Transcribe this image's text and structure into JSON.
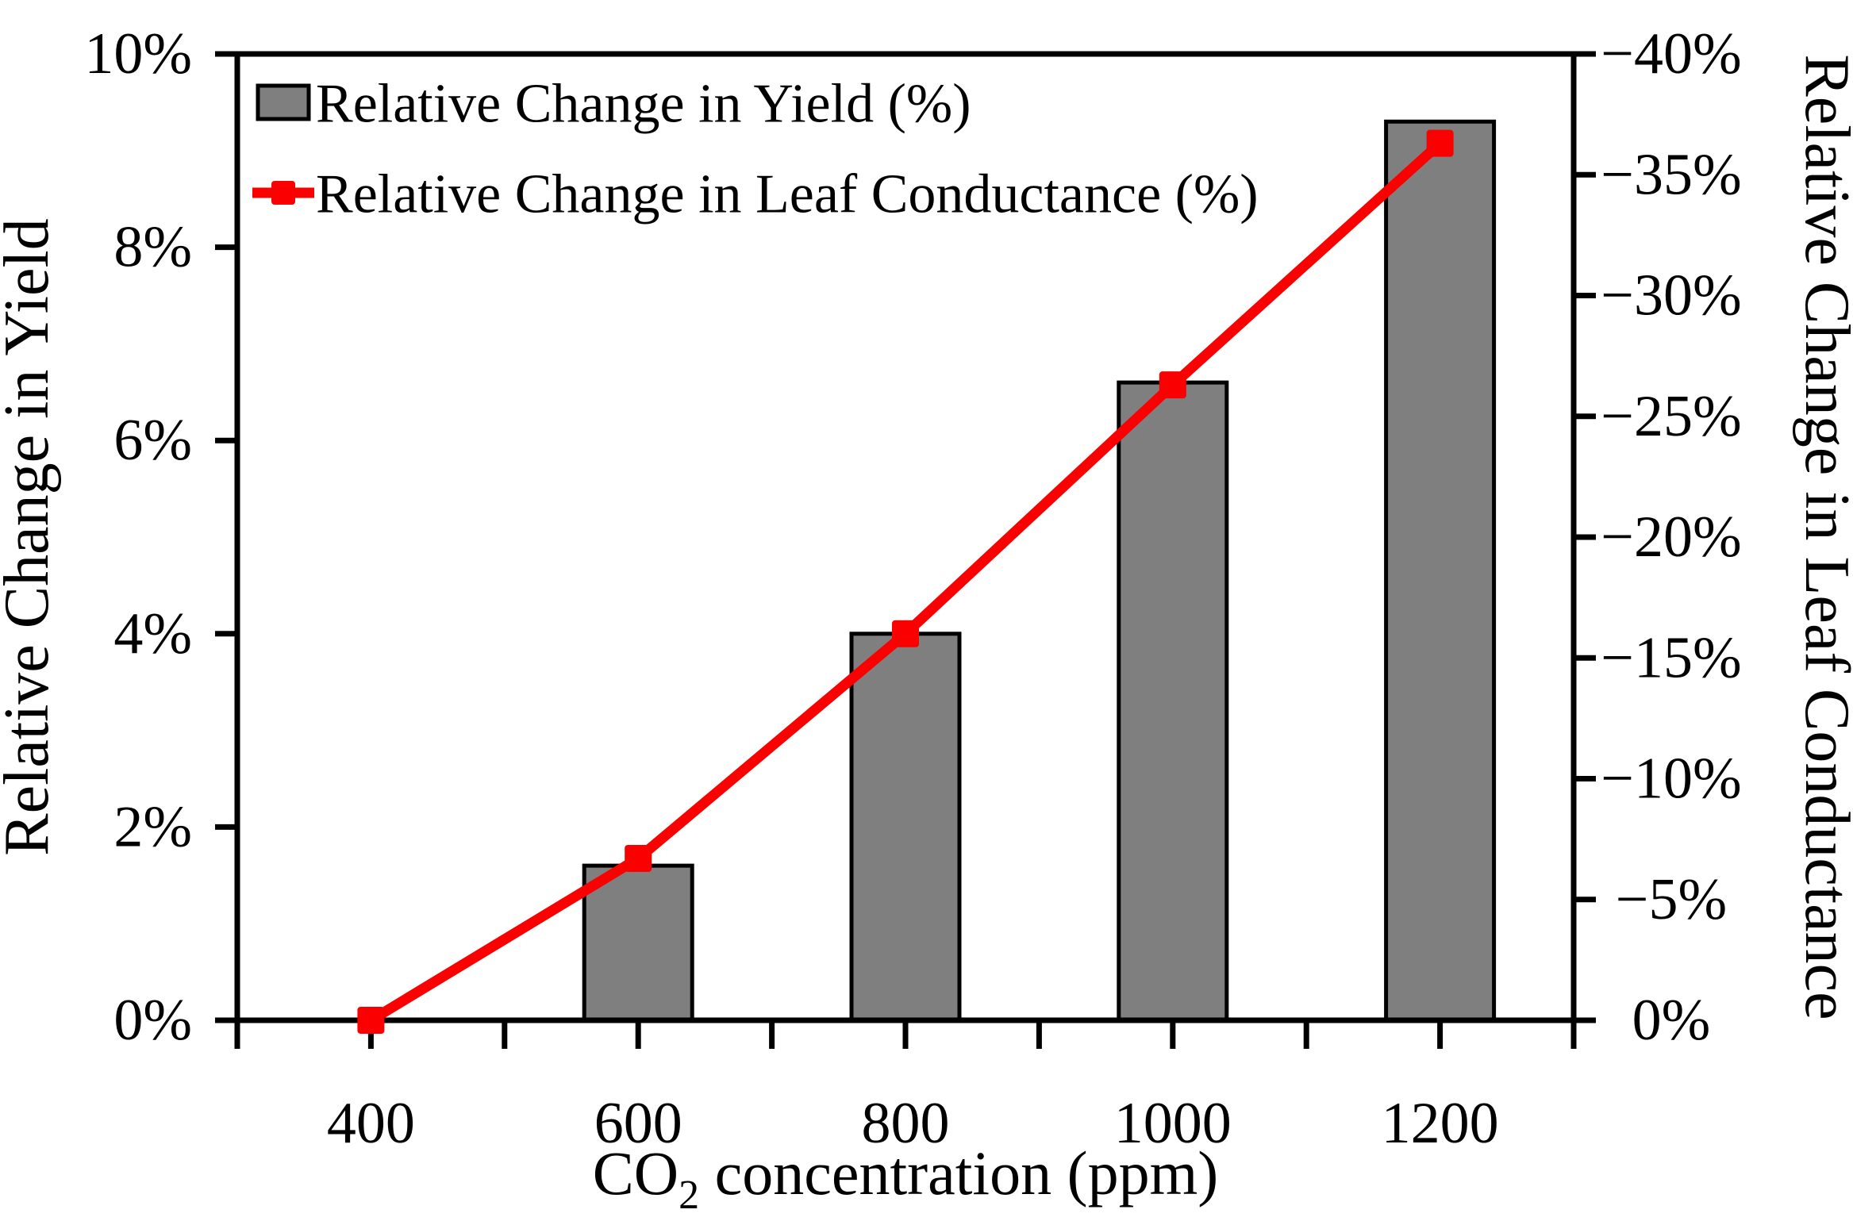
{
  "chart_data": {
    "type": "combo-bar-line",
    "x": [
      400,
      600,
      800,
      1000,
      1200
    ],
    "x_axis": {
      "label_parts": {
        "prefix": "CO",
        "sub": "2",
        "suffix": " concentration (ppm)"
      },
      "range": [
        300,
        1300
      ],
      "tick_step": 100,
      "labeled_values": [
        400,
        600,
        800,
        1000,
        1200
      ],
      "tick_labels": [
        "400",
        "600",
        "800",
        "1000",
        "1200"
      ]
    },
    "left_axis": {
      "label": "Relative Change in Yield",
      "range": [
        0,
        10
      ],
      "tick_values": [
        0,
        2,
        4,
        6,
        8,
        10
      ],
      "tick_labels": [
        "0%",
        "2%",
        "4%",
        "6%",
        "8%",
        "10%"
      ]
    },
    "right_axis": {
      "label": "Relative Change in Leaf Conductance",
      "range": [
        0,
        -40
      ],
      "tick_values": [
        0,
        -5,
        -10,
        -15,
        -20,
        -25,
        -30,
        -35,
        -40
      ],
      "tick_labels": [
        "0%",
        "−5%",
        "−10%",
        "−15%",
        "−20%",
        "−25%",
        "−30%",
        "−35%",
        "−40%"
      ]
    },
    "series": [
      {
        "name": "Relative Change in Yield (%)",
        "type": "bar",
        "axis": "left",
        "values": [
          0,
          1.6,
          4.0,
          6.6,
          9.3
        ]
      },
      {
        "name": "Relative Change in Leaf Conductance (%)",
        "type": "line",
        "axis": "right",
        "marker": "square",
        "values": [
          0,
          -6.7,
          -16.0,
          -26.3,
          -36.3
        ]
      }
    ],
    "legend_position": "top-left-inside",
    "grid": false,
    "styles": {
      "bar_fill": "#7f7f7f",
      "bar_stroke": "#000000",
      "line_color": "#fb0000",
      "axis_color": "#000000",
      "background": "#ffffff"
    }
  }
}
